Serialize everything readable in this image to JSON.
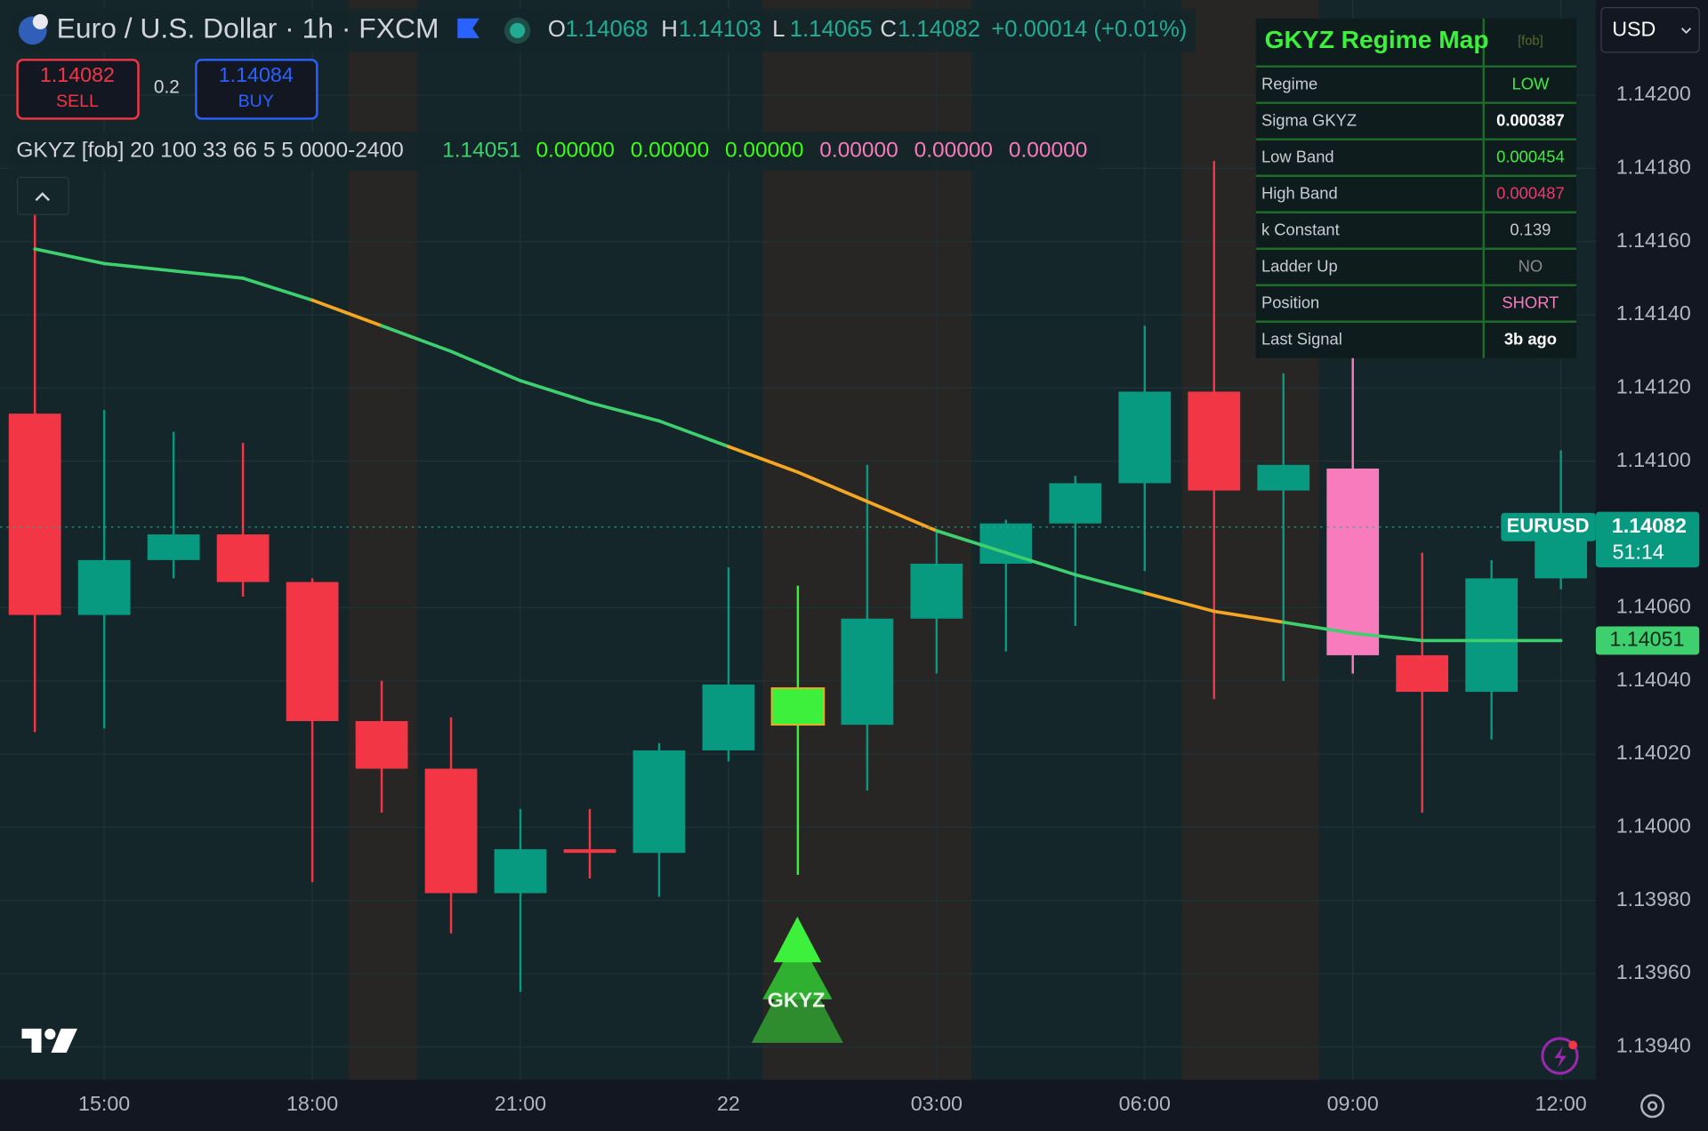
{
  "header": {
    "symbol_title": "Euro / U.S. Dollar · 1h · FXCM",
    "ohlc_letters": [
      "O",
      "H",
      "L",
      "C"
    ],
    "change": "+0.00014 (+0.01%)"
  },
  "trade": {
    "sell_price": "1.14082",
    "sell_label": "SELL",
    "spread": "0.2",
    "buy_price": "1.14084",
    "buy_label": "BUY"
  },
  "currency": "USD",
  "chart_data": {
    "type": "candlestick",
    "categories": [
      null,
      "15:00",
      null,
      null,
      "18:00",
      null,
      null,
      "21:00",
      null,
      null,
      "22",
      null,
      null,
      "03:00",
      null,
      null,
      "06:00",
      null,
      null,
      "09:00",
      null,
      null,
      "12:00"
    ],
    "open": [
      1.14113,
      1.14058,
      1.14073,
      1.1408,
      1.14067,
      1.14029,
      1.14016,
      1.13982,
      1.13994,
      1.13993,
      1.14021,
      1.14028,
      1.14028,
      1.14057,
      1.14072,
      1.14083,
      1.14094,
      1.14119,
      1.14092,
      1.14098,
      1.14047,
      1.14037,
      1.14068
    ],
    "high": [
      1.14177,
      1.14114,
      1.14108,
      1.14105,
      1.14068,
      1.1404,
      1.1403,
      1.14005,
      1.14005,
      1.14023,
      1.14071,
      1.14066,
      1.14099,
      1.14081,
      1.14084,
      1.14096,
      1.14137,
      1.14182,
      1.14124,
      1.14131,
      1.14075,
      1.14073,
      1.14103
    ],
    "low": [
      1.14026,
      1.14027,
      1.14068,
      1.14063,
      1.13985,
      1.14004,
      1.13971,
      1.13955,
      1.13986,
      1.13981,
      1.14018,
      1.13987,
      1.1401,
      1.14042,
      1.14048,
      1.14055,
      1.1407,
      1.14035,
      1.1404,
      1.14042,
      1.14004,
      1.14024,
      1.14065
    ],
    "close": [
      1.14058,
      1.14073,
      1.1408,
      1.14067,
      1.14029,
      1.14016,
      1.13982,
      1.13994,
      1.13993,
      1.14021,
      1.14039,
      1.14038,
      1.14057,
      1.14072,
      1.14083,
      1.14094,
      1.14119,
      1.14092,
      1.14099,
      1.14047,
      1.14037,
      1.14068,
      1.14082
    ],
    "colors": [
      "#f23645",
      "#089981",
      "#089981",
      "#f23645",
      "#f23645",
      "#f23645",
      "#f23645",
      "#089981",
      "#f23645",
      "#089981",
      "#089981",
      "#3cf03c",
      "#089981",
      "#089981",
      "#089981",
      "#089981",
      "#089981",
      "#f23645",
      "#089981",
      "#f77bbd",
      "#f23645",
      "#089981",
      "#089981"
    ],
    "ma": {
      "values": [
        1.14158,
        1.14154,
        1.14152,
        1.1415,
        1.14144,
        1.14137,
        1.1413,
        1.14122,
        1.14116,
        1.14111,
        1.14104,
        1.14097,
        1.14089,
        1.14081,
        1.14075,
        1.14069,
        1.14064,
        1.14059,
        1.14056,
        1.14053,
        1.14051,
        1.14051,
        1.14051
      ],
      "colors": [
        "#3ecf6e",
        "#3ecf6e",
        "#3ecf6e",
        "#3ecf6e",
        "#3ecf6e",
        "#f5a623",
        "#3ecf6e",
        "#3ecf6e",
        "#3ecf6e",
        "#3ecf6e",
        "#3ecf6e",
        "#f5a623",
        "#f5a623",
        "#f5a623",
        "#3ecf6e",
        "#3ecf6e",
        "#3ecf6e",
        "#f5a623",
        "#f5a623",
        "#3ecf6e",
        "#3ecf6e",
        "#3ecf6e",
        "#3ecf6e"
      ]
    },
    "indicator_name": "GKYZ [fob] 20 100 33 66 5 5 0000-2400",
    "indicator_values": [
      "0.00000",
      "0.00000",
      "0.00000",
      "0.00000",
      "0.00000",
      "0.00000"
    ],
    "indicator_colors": [
      "#39ff14",
      "#39ff14",
      "#39ff14",
      "#f77bbd",
      "#f77bbd",
      "#f77bbd"
    ],
    "symbol_tag": "EURUSD",
    "countdown": "51:14",
    "signal_label": "GKYZ",
    "ylim": [
      1.13931,
      1.14226
    ],
    "yticks": [
      {
        "value": 1.142,
        "label": "1.14200"
      },
      {
        "value": 1.1418,
        "label": "1.14180"
      },
      {
        "value": 1.1416,
        "label": "1.14160"
      },
      {
        "value": 1.1414,
        "label": "1.14140"
      },
      {
        "value": 1.1412,
        "label": "1.14120"
      },
      {
        "value": 1.141,
        "label": "1.14100"
      },
      {
        "value": 1.1406,
        "label": "1.14060"
      },
      {
        "value": 1.1404,
        "label": "1.14040"
      },
      {
        "value": 1.1402,
        "label": "1.14020"
      },
      {
        "value": 1.14,
        "label": "1.14000"
      },
      {
        "value": 1.1398,
        "label": "1.13980"
      },
      {
        "value": 1.1396,
        "label": "1.13960"
      },
      {
        "value": 1.1394,
        "label": "1.13940"
      }
    ],
    "grid": true
  },
  "regime_table": {
    "title": "GKYZ Regime Map",
    "tag": "[fob]",
    "rows": [
      {
        "label": "Regime",
        "value": "LOW",
        "color": "#3cf03c"
      },
      {
        "label": "Sigma GKYZ",
        "value": "0.000387",
        "color": "#ffffff"
      },
      {
        "label": "Low Band",
        "value": "0.000454",
        "color": "#3cf03c"
      },
      {
        "label": "High Band",
        "value": "0.000487",
        "color": "#f2366b"
      },
      {
        "label": "k Constant",
        "value": "0.139",
        "color": "#c8c8c8"
      },
      {
        "label": "Ladder Up",
        "value": "NO",
        "color": "#8a8a8a"
      },
      {
        "label": "Position",
        "value": "SHORT",
        "color": "#f77bbd"
      },
      {
        "label": "Last Signal",
        "value": "3b ago",
        "color": "#ffffff"
      }
    ]
  }
}
